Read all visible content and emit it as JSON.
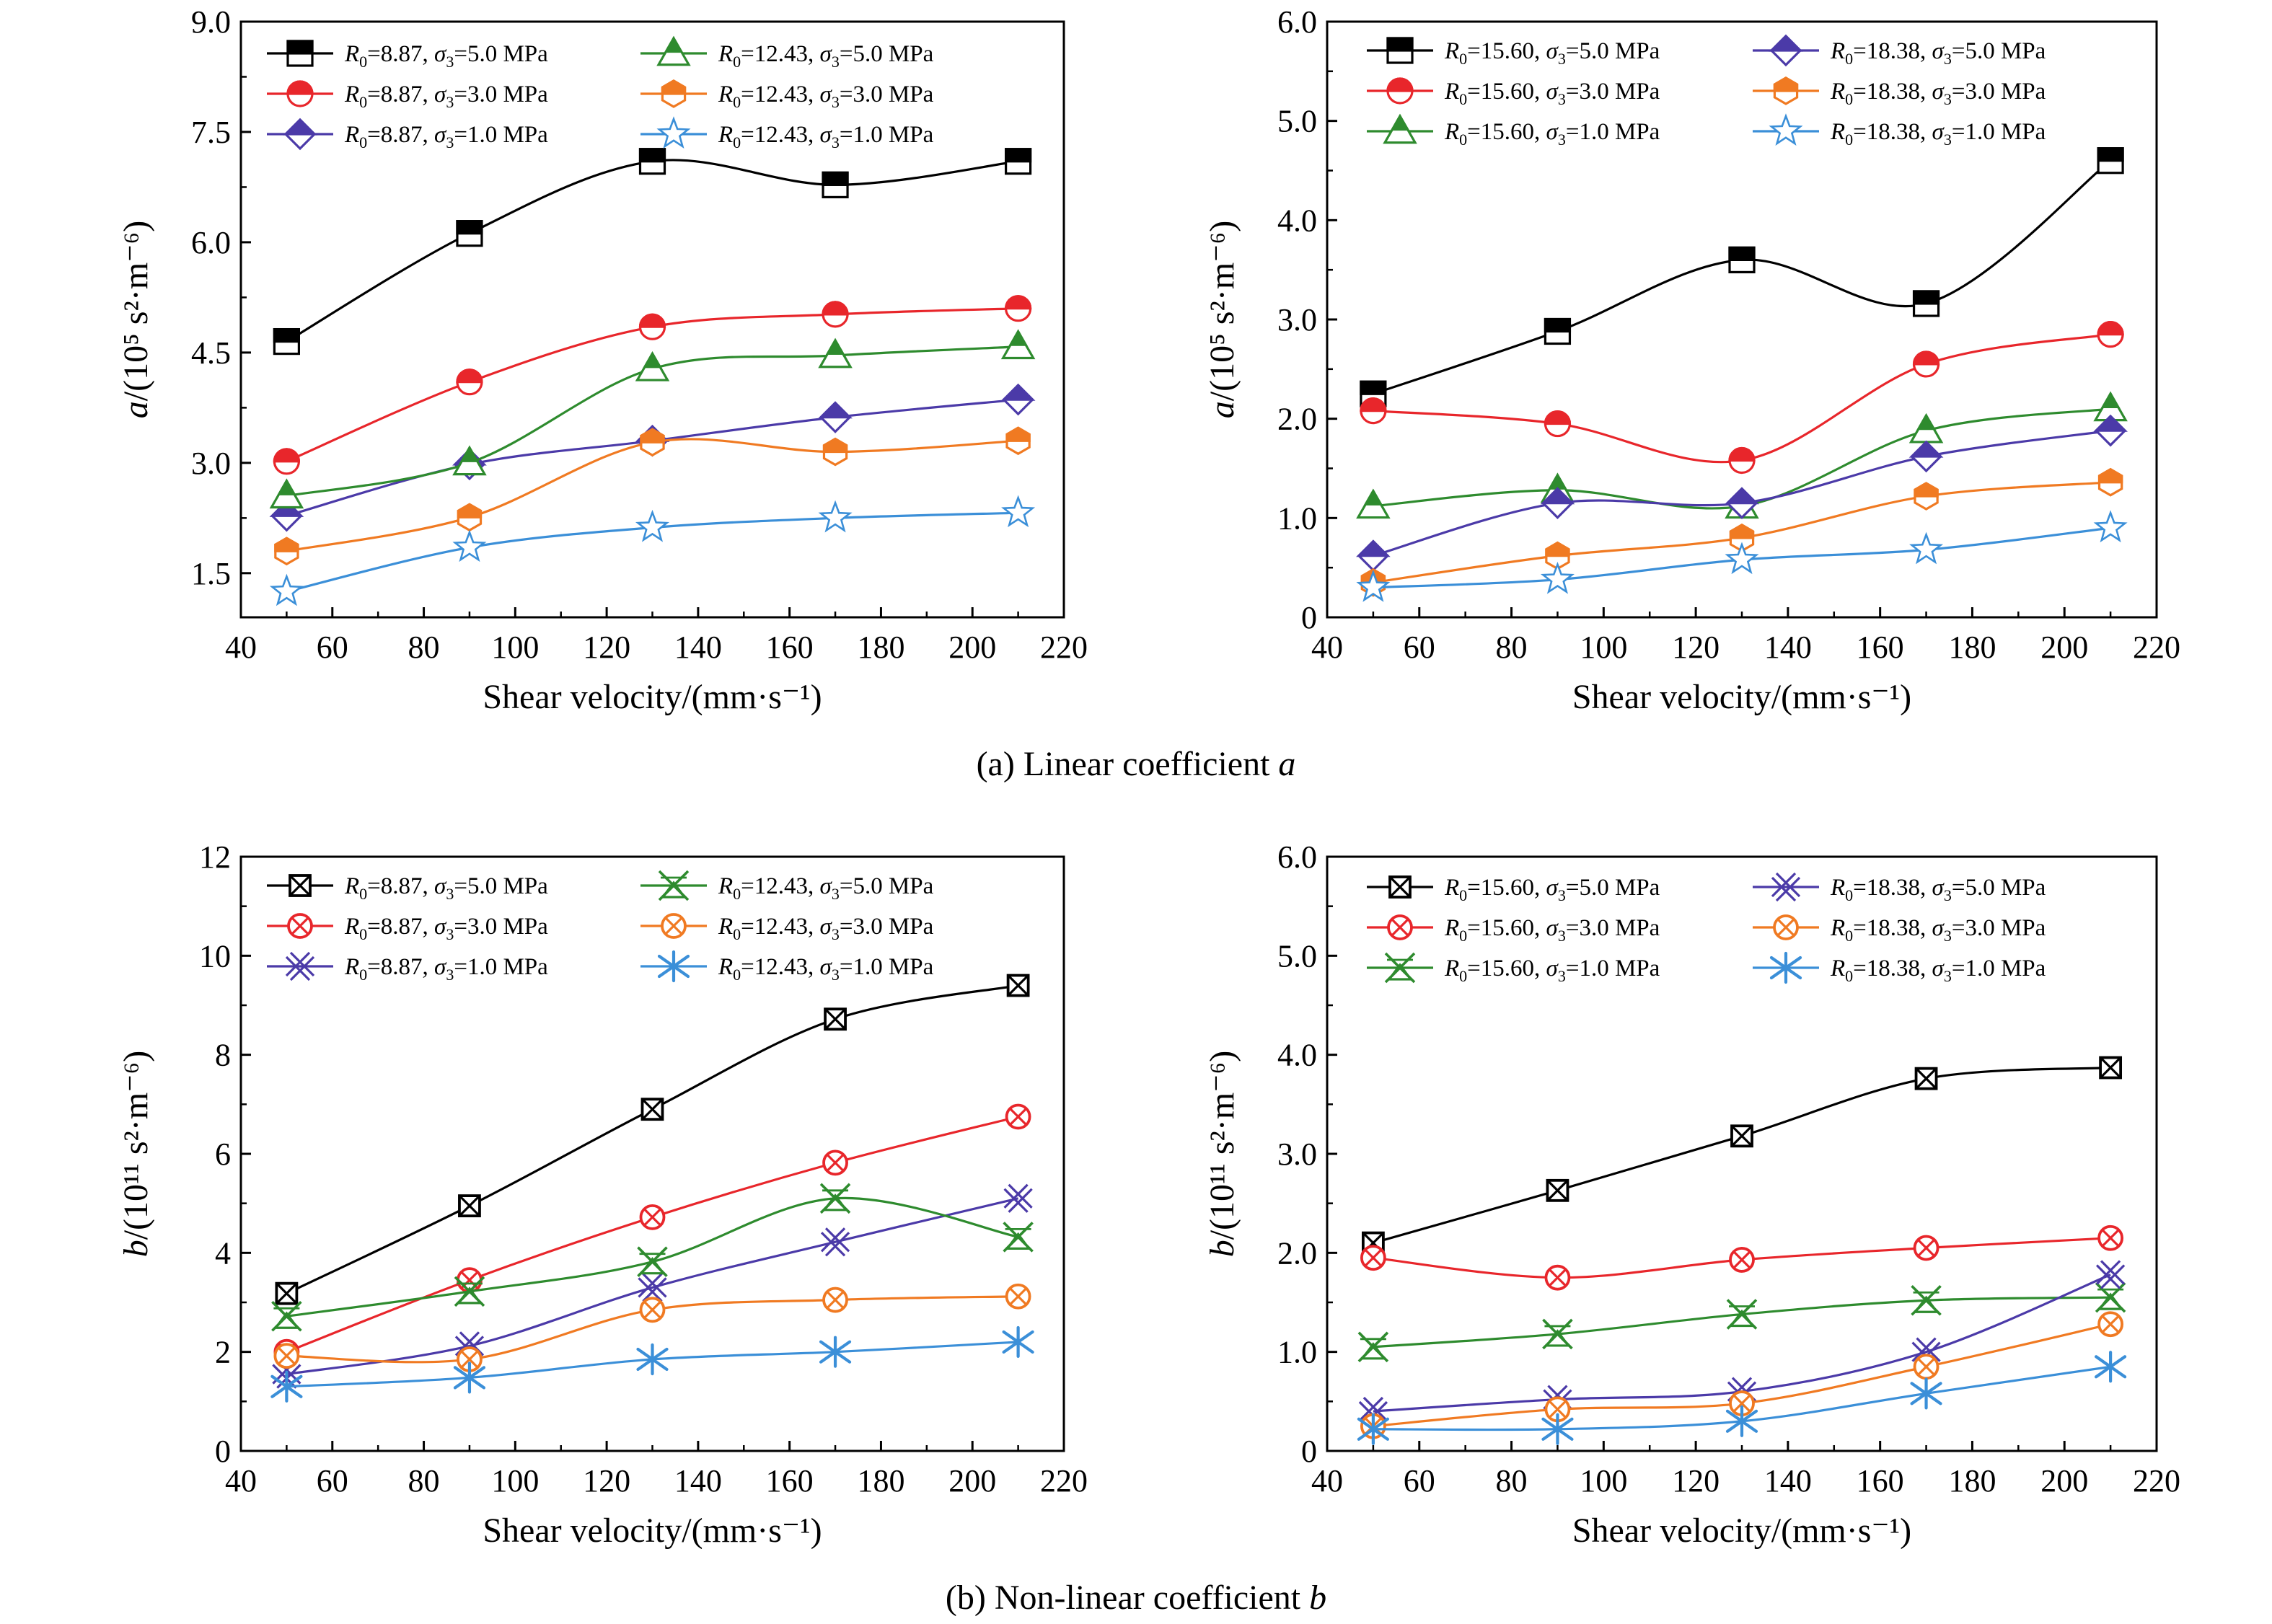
{
  "captions": {
    "a": {
      "text": "(a) Linear coefficient ",
      "symbol": "a"
    },
    "b": {
      "text": "(b) Non-linear coefficient ",
      "symbol": "b"
    }
  },
  "chart_data": [
    {
      "id": "a-left",
      "type": "line",
      "x": [
        50,
        90,
        130,
        170,
        210
      ],
      "xlabel": "Shear velocity/(mm·s⁻¹)",
      "ylabel": {
        "sym": "a",
        "rest": "/(10⁵ s²·m⁻⁶)"
      },
      "xlim": [
        40,
        220
      ],
      "ylim": [
        0.9,
        9.0
      ],
      "xticks": [
        40,
        60,
        80,
        100,
        120,
        140,
        160,
        180,
        200,
        220
      ],
      "yticks": [
        1.5,
        3.0,
        4.5,
        6.0,
        7.5,
        9.0
      ],
      "ytick_labels": [
        "1.5",
        "3.0",
        "4.5",
        "6.0",
        "7.5",
        "9.0"
      ],
      "grid": false,
      "legend_placement": "top",
      "series": [
        {
          "name": "R₀=8.87, σ₃=5.0 MPa",
          "r0": "8.87",
          "s3": "5.0",
          "color": "#000000",
          "marker": "square",
          "values": [
            4.65,
            6.12,
            7.1,
            6.78,
            7.1
          ]
        },
        {
          "name": "R₀=8.87, σ₃=3.0 MPa",
          "r0": "8.87",
          "s3": "3.0",
          "color": "#e8262b",
          "marker": "circle",
          "values": [
            3.02,
            4.1,
            4.85,
            5.02,
            5.1
          ]
        },
        {
          "name": "R₀=8.87, σ₃=1.0 MPa",
          "r0": "8.87",
          "s3": "1.0",
          "color": "#4b3aa8",
          "marker": "diamond",
          "values": [
            2.28,
            2.98,
            3.3,
            3.62,
            3.86
          ]
        },
        {
          "name": "R₀=12.43, σ₃=5.0 MPa",
          "r0": "12.43",
          "s3": "5.0",
          "color": "#2e8b2e",
          "marker": "triangle",
          "values": [
            2.55,
            3.0,
            4.28,
            4.46,
            4.58
          ]
        },
        {
          "name": "R₀=12.43, σ₃=3.0 MPa",
          "r0": "12.43",
          "s3": "3.0",
          "color": "#f07a22",
          "marker": "hexagon",
          "values": [
            1.8,
            2.26,
            3.28,
            3.15,
            3.3
          ]
        },
        {
          "name": "R₀=12.43, σ₃=1.0 MPa",
          "r0": "12.43",
          "s3": "1.0",
          "color": "#3b8fd8",
          "marker": "star",
          "values": [
            1.25,
            1.85,
            2.12,
            2.25,
            2.32
          ]
        }
      ]
    },
    {
      "id": "a-right",
      "type": "line",
      "x": [
        50,
        90,
        130,
        170,
        210
      ],
      "xlabel": "Shear velocity/(mm·s⁻¹)",
      "ylabel": {
        "sym": "a",
        "rest": "/(10⁵ s²·m⁻⁶)"
      },
      "xlim": [
        40,
        220
      ],
      "ylim": [
        0,
        6.0
      ],
      "xticks": [
        40,
        60,
        80,
        100,
        120,
        140,
        160,
        180,
        200,
        220
      ],
      "yticks": [
        0,
        1.0,
        2.0,
        3.0,
        4.0,
        5.0,
        6.0
      ],
      "ytick_labels": [
        "0",
        "1.0",
        "2.0",
        "3.0",
        "4.0",
        "5.0",
        "6.0"
      ],
      "grid": false,
      "legend_placement": "top",
      "series": [
        {
          "name": "R₀=15.60, σ₃=5.0 MPa",
          "r0": "15.60",
          "s3": "5.0",
          "color": "#000000",
          "marker": "square",
          "values": [
            2.25,
            2.88,
            3.6,
            3.16,
            4.6
          ]
        },
        {
          "name": "R₀=15.60, σ₃=3.0 MPa",
          "r0": "15.60",
          "s3": "3.0",
          "color": "#e8262b",
          "marker": "circle",
          "values": [
            2.08,
            1.95,
            1.58,
            2.55,
            2.85
          ]
        },
        {
          "name": "R₀=15.60, σ₃=1.0 MPa",
          "r0": "15.60",
          "s3": "1.0",
          "color": "#2e8b2e",
          "marker": "triangle",
          "values": [
            1.12,
            1.28,
            1.12,
            1.88,
            2.1
          ]
        },
        {
          "name": "R₀=18.38, σ₃=5.0 MPa",
          "r0": "18.38",
          "s3": "5.0",
          "color": "#4b3aa8",
          "marker": "diamond",
          "values": [
            0.62,
            1.15,
            1.15,
            1.62,
            1.88
          ]
        },
        {
          "name": "R₀=18.38, σ₃=3.0 MPa",
          "r0": "18.38",
          "s3": "3.0",
          "color": "#f07a22",
          "marker": "hexagon",
          "values": [
            0.35,
            0.62,
            0.8,
            1.22,
            1.36
          ]
        },
        {
          "name": "R₀=18.38, σ₃=1.0 MPa",
          "r0": "18.38",
          "s3": "1.0",
          "color": "#3b8fd8",
          "marker": "star",
          "values": [
            0.3,
            0.38,
            0.58,
            0.68,
            0.9
          ]
        }
      ]
    },
    {
      "id": "b-left",
      "type": "line",
      "x": [
        50,
        90,
        130,
        170,
        210
      ],
      "xlabel": "Shear velocity/(mm·s⁻¹)",
      "ylabel": {
        "sym": "b",
        "rest": "/(10¹¹ s²·m⁻⁶)"
      },
      "xlim": [
        40,
        220
      ],
      "ylim": [
        0,
        12
      ],
      "xticks": [
        40,
        60,
        80,
        100,
        120,
        140,
        160,
        180,
        200,
        220
      ],
      "yticks": [
        0,
        2,
        4,
        6,
        8,
        10,
        12
      ],
      "ytick_labels": [
        "0",
        "2",
        "4",
        "6",
        "8",
        "10",
        "12"
      ],
      "grid": false,
      "legend_placement": "top",
      "series": [
        {
          "name": "R₀=8.87, σ₃=5.0 MPa",
          "r0": "8.87",
          "s3": "5.0",
          "color": "#000000",
          "marker": "xsquare",
          "values": [
            3.18,
            4.95,
            6.9,
            8.72,
            9.4
          ]
        },
        {
          "name": "R₀=8.87, σ₃=3.0 MPa",
          "r0": "8.87",
          "s3": "3.0",
          "color": "#e8262b",
          "marker": "xcircle",
          "values": [
            2.0,
            3.45,
            4.72,
            5.82,
            6.75
          ]
        },
        {
          "name": "R₀=8.87, σ₃=1.0 MPa",
          "r0": "8.87",
          "s3": "1.0",
          "color": "#4b3aa8",
          "marker": "xcross",
          "values": [
            1.55,
            2.12,
            3.3,
            4.22,
            5.1
          ]
        },
        {
          "name": "R₀=12.43, σ₃=5.0 MPa",
          "r0": "12.43",
          "s3": "5.0",
          "color": "#2e8b2e",
          "marker": "xtri",
          "values": [
            2.72,
            3.22,
            3.82,
            5.1,
            4.32
          ]
        },
        {
          "name": "R₀=12.43, σ₃=3.0 MPa",
          "r0": "12.43",
          "s3": "3.0",
          "color": "#f07a22",
          "marker": "xcircle",
          "values": [
            1.92,
            1.85,
            2.85,
            3.05,
            3.12
          ]
        },
        {
          "name": "R₀=12.43, σ₃=1.0 MPa",
          "r0": "12.43",
          "s3": "1.0",
          "color": "#3b8fd8",
          "marker": "asterisk",
          "values": [
            1.3,
            1.48,
            1.85,
            2.0,
            2.2
          ]
        }
      ]
    },
    {
      "id": "b-right",
      "type": "line",
      "x": [
        50,
        90,
        130,
        170,
        210
      ],
      "xlabel": "Shear velocity/(mm·s⁻¹)",
      "ylabel": {
        "sym": "b",
        "rest": "/(10¹¹ s²·m⁻⁶)"
      },
      "xlim": [
        40,
        220
      ],
      "ylim": [
        0,
        6.0
      ],
      "xticks": [
        40,
        60,
        80,
        100,
        120,
        140,
        160,
        180,
        200,
        220
      ],
      "yticks": [
        0,
        1.0,
        2.0,
        3.0,
        4.0,
        5.0,
        6.0
      ],
      "ytick_labels": [
        "0",
        "1.0",
        "2.0",
        "3.0",
        "4.0",
        "5.0",
        "6.0"
      ],
      "grid": false,
      "legend_placement": "top",
      "series": [
        {
          "name": "R₀=15.60, σ₃=5.0 MPa",
          "r0": "15.60",
          "s3": "5.0",
          "color": "#000000",
          "marker": "xsquare",
          "values": [
            2.1,
            2.63,
            3.18,
            3.76,
            3.87
          ]
        },
        {
          "name": "R₀=15.60, σ₃=3.0 MPa",
          "r0": "15.60",
          "s3": "3.0",
          "color": "#e8262b",
          "marker": "xcircle",
          "values": [
            1.95,
            1.75,
            1.93,
            2.05,
            2.15
          ]
        },
        {
          "name": "R₀=15.60, σ₃=1.0 MPa",
          "r0": "15.60",
          "s3": "1.0",
          "color": "#2e8b2e",
          "marker": "xtri",
          "values": [
            1.05,
            1.18,
            1.38,
            1.52,
            1.55
          ]
        },
        {
          "name": "R₀=18.38, σ₃=5.0 MPa",
          "r0": "18.38",
          "s3": "5.0",
          "color": "#4b3aa8",
          "marker": "xcross",
          "values": [
            0.4,
            0.52,
            0.6,
            1.0,
            1.78
          ]
        },
        {
          "name": "R₀=18.38, σ₃=3.0 MPa",
          "r0": "18.38",
          "s3": "3.0",
          "color": "#f07a22",
          "marker": "xcircle",
          "values": [
            0.25,
            0.42,
            0.48,
            0.85,
            1.28
          ]
        },
        {
          "name": "R₀=18.38, σ₃=1.0 MPa",
          "r0": "18.38",
          "s3": "1.0",
          "color": "#3b8fd8",
          "marker": "asterisk",
          "values": [
            0.22,
            0.22,
            0.3,
            0.58,
            0.85
          ]
        }
      ]
    }
  ]
}
